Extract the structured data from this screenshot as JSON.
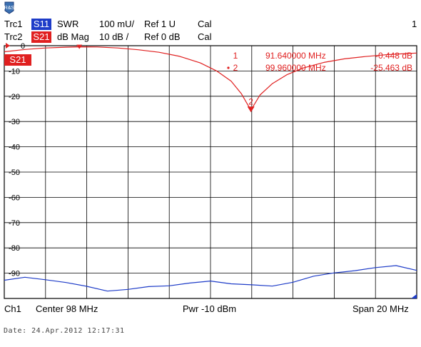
{
  "header": {
    "logo": "R&S",
    "trace1": {
      "name": "Trc1",
      "param": "S11",
      "format": "SWR",
      "scale": "100 mU/",
      "ref": "Ref 1 U",
      "cal": "Cal",
      "color": "#1e3cc8"
    },
    "trace2": {
      "name": "Trc2",
      "param": "S21",
      "format": "dB Mag",
      "scale": "10 dB /",
      "ref": "Ref 0 dB",
      "cal": "Cal",
      "color": "#e02020"
    },
    "channel_number": "1"
  },
  "plot": {
    "trace_tag": "S21",
    "ref_level_label": "0"
  },
  "markers": [
    {
      "label": "1",
      "freq": "91.640000  MHz",
      "value": "-0.448  dB",
      "active": false
    },
    {
      "label": "2",
      "freq": "99.960000  MHz",
      "value": "-25.463  dB",
      "active": true
    }
  ],
  "footer": {
    "channel": "Ch1",
    "center": "Center  98 MHz",
    "power": "Pwr  -10 dBm",
    "span": "Span  20 MHz"
  },
  "date": "Date: 24.Apr.2012  12:17:31",
  "chart_data": {
    "type": "line",
    "x_unit": "MHz",
    "xlim": [
      88,
      108
    ],
    "ylim": [
      -100,
      0
    ],
    "yticks": [
      0,
      -10,
      -20,
      -30,
      -40,
      -50,
      -60,
      -70,
      -80,
      -90
    ],
    "ytick_labels": [
      "0",
      "-10",
      "-20",
      "-30",
      "-40",
      "-50",
      "-60",
      "-70",
      "-80",
      "-90"
    ],
    "grid": true,
    "series": [
      {
        "name": "S21",
        "color": "#e02020",
        "x": [
          88,
          89,
          90,
          91,
          91.64,
          92.5,
          93.5,
          94.5,
          95.5,
          96.5,
          97.5,
          98.3,
          99,
          99.5,
          99.96,
          100.4,
          101,
          101.7,
          102.5,
          103.5,
          104.5,
          105.5,
          106.5,
          107.5,
          108
        ],
        "y": [
          -2.4,
          -1.5,
          -0.9,
          -0.6,
          -0.45,
          -0.5,
          -0.9,
          -1.6,
          -2.6,
          -4.2,
          -6.8,
          -10,
          -14,
          -19,
          -25.5,
          -19.5,
          -15,
          -11.5,
          -8.8,
          -6.6,
          -5.2,
          -4.3,
          -3.6,
          -3.1,
          -2.9
        ]
      },
      {
        "name": "S11",
        "color": "#1e3cc8",
        "x": [
          88,
          89,
          90,
          91,
          92,
          93,
          94,
          95,
          96,
          97,
          98,
          99,
          100,
          101,
          102,
          103,
          104,
          105,
          106,
          107,
          108
        ],
        "y": [
          -92.8,
          -91.6,
          -92.6,
          -93.7,
          -95.2,
          -97.1,
          -96.4,
          -95.3,
          -95.0,
          -93.9,
          -93.1,
          -94.2,
          -94.6,
          -95.1,
          -93.6,
          -91.2,
          -89.9,
          -89.0,
          -87.8,
          -87.0,
          -88.9
        ]
      }
    ]
  }
}
